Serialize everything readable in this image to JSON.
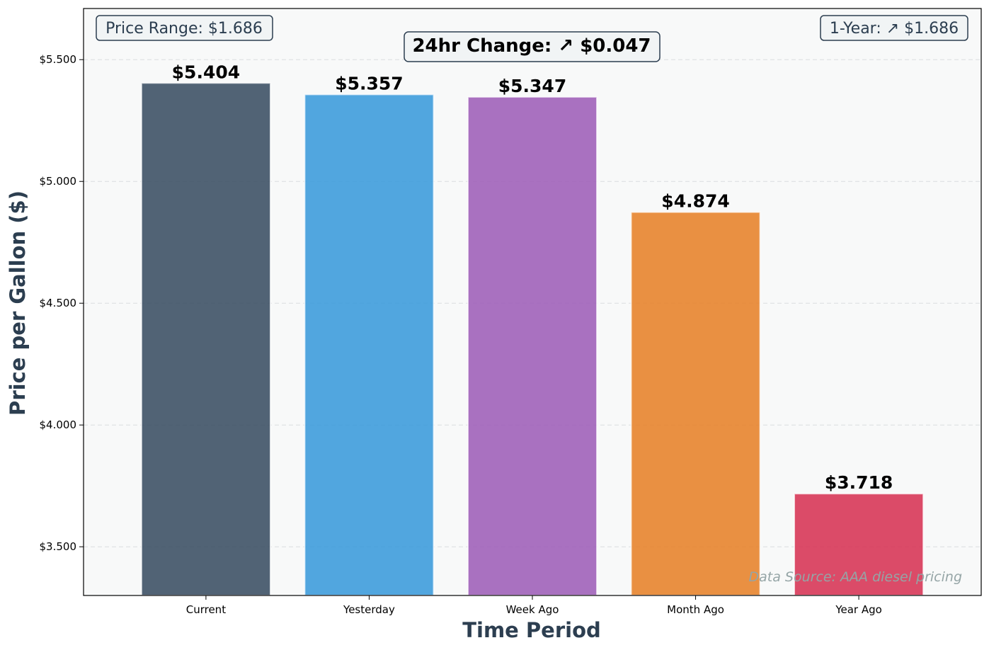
{
  "chart_data": {
    "type": "bar",
    "categories": [
      "Current",
      "Yesterday",
      "Week Ago",
      "Month Ago",
      "Year Ago"
    ],
    "values": [
      5.404,
      5.357,
      5.347,
      4.874,
      3.718
    ],
    "value_labels": [
      "$5.404",
      "$5.357",
      "$5.347",
      "$4.874",
      "$3.718"
    ],
    "colors": [
      "#34495e",
      "#3498db",
      "#9b59b6",
      "#e67e22",
      "#d62d4f"
    ],
    "xlabel": "Time Period",
    "ylabel": "Price per Gallon ($)",
    "ylim": [
      3.3,
      5.71
    ],
    "yticks": [
      3.5,
      4.0,
      4.5,
      5.0,
      5.5
    ],
    "ytick_labels": [
      "$3.500",
      "$4.000",
      "$4.500",
      "$5.000",
      "$5.500"
    ],
    "grid": true,
    "annotations": {
      "price_range": "Price Range: $1.686",
      "change_24hr": "24hr Change: ↗ $0.047",
      "one_year": "1-Year: ↗ $1.686",
      "source": "Data Source: AAA diesel pricing"
    }
  }
}
